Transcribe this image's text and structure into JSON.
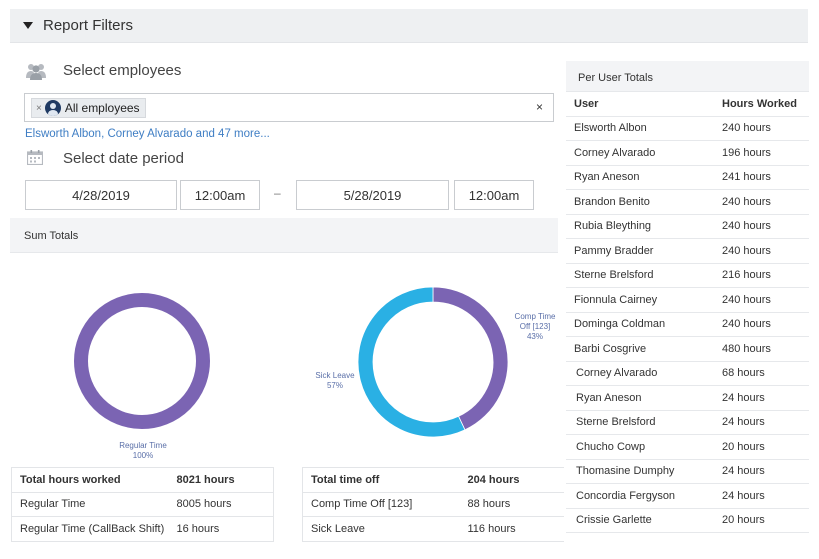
{
  "filters": {
    "title": "Report Filters",
    "employees_label": "Select employees",
    "chip_label": "All employees",
    "chip_remove": "×",
    "clear": "×",
    "employee_summary": "Elsworth Albon, Corney Alvarado and 47 more...",
    "date_label": "Select date period",
    "start_date": "4/28/2019",
    "start_time": "12:00am",
    "separator": "–",
    "end_date": "5/28/2019",
    "end_time": "12:00am"
  },
  "sum_totals": {
    "title": "Sum Totals",
    "donut_hours": {
      "slices": [
        {
          "label": "Regular Time",
          "percent_label": "100%",
          "fraction": 1.0,
          "color": "#7b64b3"
        }
      ]
    },
    "donut_time_off": {
      "slices": [
        {
          "label": "Comp Time Off [123]",
          "percent_label": "43%",
          "fraction": 0.43,
          "color": "#7b64b3"
        },
        {
          "label": "Sick Leave",
          "percent_label": "57%",
          "fraction": 0.57,
          "color": "#2ab0e4"
        }
      ]
    },
    "hours_table": [
      {
        "label": "Total hours worked",
        "value": "8021 hours"
      },
      {
        "label": "Regular Time",
        "value": "8005 hours"
      },
      {
        "label": "Regular Time (CallBack Shift)",
        "value": "16 hours"
      }
    ],
    "time_off_table": [
      {
        "label": "Total time off",
        "value": "204 hours"
      },
      {
        "label": "Comp Time Off [123]",
        "value": "88 hours"
      },
      {
        "label": "Sick Leave",
        "value": "116 hours"
      }
    ]
  },
  "per_user": {
    "title": "Per User Totals",
    "col_user": "User",
    "col_hours": "Hours Worked",
    "rows": [
      {
        "user": "Elsworth Albon",
        "hours": "240 hours"
      },
      {
        "user": "Corney Alvarado",
        "hours": "196 hours"
      },
      {
        "user": "Ryan Aneson",
        "hours": "241 hours"
      },
      {
        "user": "Brandon Benito",
        "hours": "240 hours"
      },
      {
        "user": "Rubia Bleything",
        "hours": "240 hours"
      },
      {
        "user": "Pammy Bradder",
        "hours": "240 hours"
      },
      {
        "user": "Sterne Brelsford",
        "hours": "216 hours"
      },
      {
        "user": "Fionnula Cairney",
        "hours": "240 hours"
      },
      {
        "user": "Dominga Coldman",
        "hours": "240 hours"
      },
      {
        "user": "Barbi Cosgrive",
        "hours": "480 hours"
      },
      {
        "user": "Corney Alvarado",
        "hours": "68 hours"
      },
      {
        "user": "Ryan Aneson",
        "hours": "24 hours"
      },
      {
        "user": "Sterne Brelsford",
        "hours": "24 hours"
      },
      {
        "user": "Chucho Cowp",
        "hours": "20 hours"
      },
      {
        "user": "Thomasine Dumphy",
        "hours": "24 hours"
      },
      {
        "user": "Concordia Fergyson",
        "hours": "24 hours"
      },
      {
        "user": "Crissie Garlette",
        "hours": "20 hours"
      }
    ]
  }
}
